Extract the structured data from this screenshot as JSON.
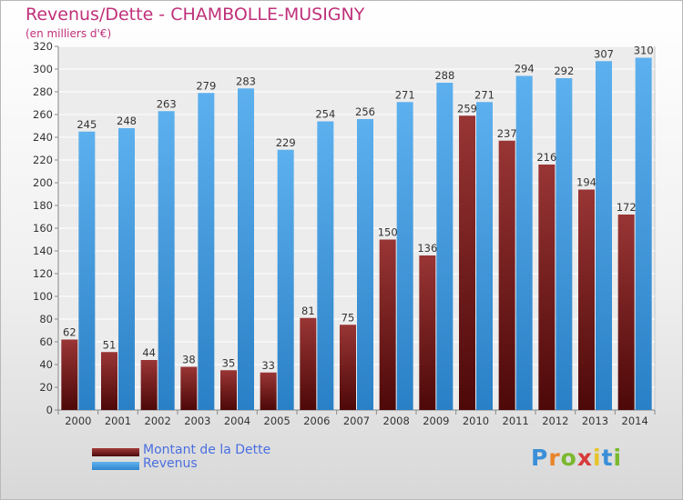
{
  "chart_data": {
    "type": "bar",
    "title": "Revenus/Dette - CHAMBOLLE-MUSIGNY",
    "subtitle": "(en milliers d'€)",
    "categories": [
      "2000",
      "2001",
      "2002",
      "2003",
      "2004",
      "2005",
      "2006",
      "2007",
      "2008",
      "2009",
      "2010",
      "2011",
      "2012",
      "2013",
      "2014"
    ],
    "series": [
      {
        "name": "Montant de la Dette",
        "values": [
          62,
          51,
          44,
          38,
          35,
          33,
          81,
          75,
          150,
          136,
          259,
          237,
          216,
          194,
          172
        ],
        "color": "#7a2020"
      },
      {
        "name": "Revenus",
        "values": [
          245,
          248,
          263,
          279,
          283,
          229,
          254,
          256,
          271,
          288,
          271,
          294,
          292,
          307,
          310
        ],
        "color": "#4a9ee0"
      }
    ],
    "ylim": [
      0,
      320
    ],
    "yticks": [
      0,
      20,
      40,
      60,
      80,
      100,
      120,
      140,
      160,
      180,
      200,
      220,
      240,
      260,
      280,
      300,
      320
    ],
    "grid": true,
    "legend": "bottom-left"
  },
  "logo": {
    "text": "Proxiti"
  }
}
